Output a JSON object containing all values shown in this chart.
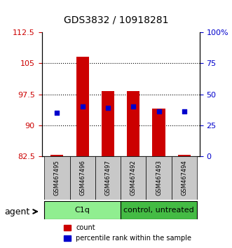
{
  "title": "GDS3832 / 10918281",
  "samples": [
    "GSM467495",
    "GSM467496",
    "GSM467497",
    "GSM467492",
    "GSM467493",
    "GSM467494"
  ],
  "groups": [
    "C1q",
    "C1q",
    "C1q",
    "control, untreated",
    "control, untreated",
    "control, untreated"
  ],
  "group_labels": [
    "C1q",
    "control, untreated"
  ],
  "group_colors": [
    "#90EE90",
    "#00CC00"
  ],
  "bar_bottom": 82.5,
  "red_tops": [
    82.9,
    106.5,
    98.2,
    98.3,
    94.0,
    82.8
  ],
  "blue_vals": [
    93.0,
    94.5,
    94.2,
    94.5,
    93.3,
    93.3
  ],
  "ylim_left": [
    82.5,
    112.5
  ],
  "ylim_right": [
    0,
    100
  ],
  "yticks_left": [
    82.5,
    90.0,
    97.5,
    105.0,
    112.5
  ],
  "yticks_right": [
    0,
    25,
    50,
    75,
    100
  ],
  "ytick_labels_left": [
    "82.5",
    "90",
    "97.5",
    "105",
    "112.5"
  ],
  "ytick_labels_right": [
    "0",
    "25",
    "50",
    "75",
    "100%"
  ],
  "left_color": "#CC0000",
  "right_color": "#0000CC",
  "bar_color": "#CC0000",
  "dot_color": "#0000CC",
  "legend_count_label": "count",
  "legend_percentile_label": "percentile rank within the sample",
  "agent_label": "agent",
  "group_split": 3,
  "bar_width": 0.5
}
